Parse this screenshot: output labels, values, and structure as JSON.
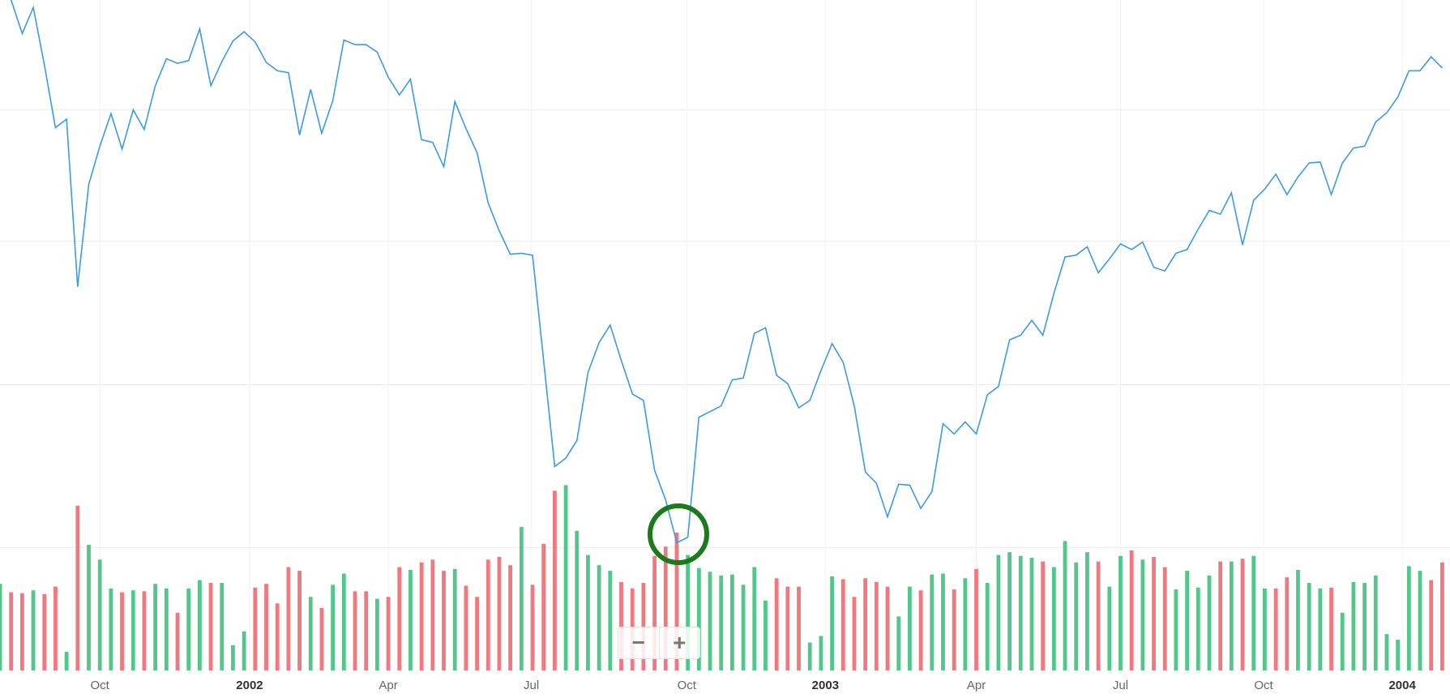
{
  "chart_data": {
    "type": "stock",
    "xlim": [
      0,
      130.7
    ],
    "ylim": [
      0,
      720
    ],
    "y2lim": [
      0,
      720
    ],
    "ygrid": [
      602,
      461,
      307,
      132
    ],
    "xticks": [
      {
        "value": 9,
        "label": "Oct"
      },
      {
        "value": 22.5,
        "label": "2002"
      },
      {
        "value": 35,
        "label": "Apr"
      },
      {
        "value": 47.9,
        "label": "Jul"
      },
      {
        "value": 61.9,
        "label": "Oct"
      },
      {
        "value": 74.4,
        "label": "2003"
      },
      {
        "value": 88,
        "label": "Apr"
      },
      {
        "value": 101,
        "label": "Jul"
      },
      {
        "value": 113.9,
        "label": "Oct"
      },
      {
        "value": 126.4,
        "label": "2004"
      }
    ],
    "series": [
      {
        "type": "line",
        "color": "#3b9be3",
        "values": [
          750,
          720,
          684,
          712,
          650,
          583,
          592,
          412,
          522,
          563,
          598,
          560,
          602,
          581,
          628,
          657,
          652,
          655,
          689,
          628,
          654,
          676,
          686,
          675,
          653,
          644,
          642,
          575,
          624,
          577,
          612,
          677,
          672,
          672,
          664,
          637,
          618,
          635,
          570,
          567,
          541,
          611,
          582,
          556,
          502,
          472,
          447,
          448,
          446,
          333,
          219,
          228,
          247,
          320,
          352,
          371,
          333,
          297,
          290,
          215,
          183,
          137,
          143,
          272,
          278,
          284,
          312,
          314,
          362,
          368,
          317,
          308,
          282,
          290,
          322,
          351,
          331,
          284,
          213,
          201,
          165,
          200,
          199,
          174,
          192,
          265,
          254,
          267,
          254,
          296,
          305,
          355,
          360,
          376,
          360,
          405,
          444,
          446,
          455,
          427,
          442,
          458,
          452,
          460,
          433,
          429,
          448,
          452,
          474,
          494,
          490,
          513,
          457,
          505,
          517,
          533,
          511,
          530,
          545,
          546,
          511,
          545,
          561,
          563,
          589,
          599,
          616,
          644,
          644,
          659,
          647
        ]
      },
      {
        "type": "bar",
        "axis": "y2",
        "values": [
          93,
          84,
          83,
          86,
          82,
          90,
          20,
          177,
          135,
          119,
          88,
          84,
          86,
          85,
          93,
          88,
          62,
          88,
          97,
          94,
          94,
          27,
          42,
          89,
          93,
          72,
          111,
          107,
          79,
          67,
          92,
          104,
          85,
          85,
          77,
          79,
          111,
          108,
          116,
          119,
          107,
          109,
          91,
          79,
          119,
          122,
          113,
          154,
          92,
          136,
          193,
          199,
          150,
          124,
          113,
          107,
          95,
          88,
          94,
          123,
          133,
          148,
          124,
          110,
          106,
          102,
          103,
          92,
          111,
          75,
          99,
          90,
          90,
          30,
          37,
          101,
          98,
          79,
          99,
          95,
          90,
          58,
          90,
          86,
          103,
          104,
          87,
          99,
          109,
          94,
          124,
          127,
          123,
          121,
          117,
          111,
          139,
          116,
          127,
          117,
          90,
          123,
          129,
          119,
          122,
          111,
          87,
          107,
          89,
          102,
          117,
          117,
          120,
          123,
          88,
          88,
          100,
          108,
          94,
          88,
          89,
          62,
          95,
          94,
          102,
          39,
          33,
          112,
          107,
          97,
          116
        ],
        "colors": [
          "#52c68b",
          "#f0787e",
          "#f0787e",
          "#52c68b",
          "#f0787e",
          "#f0787e",
          "#52c68b",
          "#f0787e",
          "#52c68b",
          "#52c68b",
          "#52c68b",
          "#f0787e",
          "#52c68b",
          "#f0787e",
          "#52c68b",
          "#52c68b",
          "#f0787e",
          "#52c68b",
          "#52c68b",
          "#f0787e",
          "#52c68b",
          "#52c68b",
          "#52c68b",
          "#f0787e",
          "#f0787e",
          "#f0787e",
          "#f0787e",
          "#f0787e",
          "#52c68b",
          "#f0787e",
          "#52c68b",
          "#52c68b",
          "#f0787e",
          "#f0787e",
          "#52c68b",
          "#f0787e",
          "#f0787e",
          "#52c68b",
          "#f0787e",
          "#f0787e",
          "#f0787e",
          "#52c68b",
          "#f0787e",
          "#f0787e",
          "#f0787e",
          "#f0787e",
          "#f0787e",
          "#52c68b",
          "#f0787e",
          "#f0787e",
          "#f0787e",
          "#52c68b",
          "#52c68b",
          "#52c68b",
          "#52c68b",
          "#52c68b",
          "#f0787e",
          "#f0787e",
          "#f0787e",
          "#f0787e",
          "#f0787e",
          "#f0787e",
          "#52c68b",
          "#52c68b",
          "#52c68b",
          "#52c68b",
          "#52c68b",
          "#52c68b",
          "#52c68b",
          "#52c68b",
          "#f0787e",
          "#f0787e",
          "#f0787e",
          "#52c68b",
          "#52c68b",
          "#52c68b",
          "#f0787e",
          "#f0787e",
          "#f0787e",
          "#f0787e",
          "#f0787e",
          "#52c68b",
          "#52c68b",
          "#f0787e",
          "#52c68b",
          "#52c68b",
          "#f0787e",
          "#52c68b",
          "#f0787e",
          "#52c68b",
          "#52c68b",
          "#52c68b",
          "#52c68b",
          "#52c68b",
          "#f0787e",
          "#52c68b",
          "#52c68b",
          "#52c68b",
          "#52c68b",
          "#f0787e",
          "#52c68b",
          "#52c68b",
          "#f0787e",
          "#52c68b",
          "#f0787e",
          "#f0787e",
          "#52c68b",
          "#52c68b",
          "#52c68b",
          "#52c68b",
          "#f0787e",
          "#52c68b",
          "#f0787e",
          "#52c68b",
          "#52c68b",
          "#f0787e",
          "#f0787e",
          "#52c68b",
          "#52c68b",
          "#52c68b",
          "#f0787e",
          "#52c68b",
          "#52c68b",
          "#52c68b",
          "#52c68b",
          "#52c68b",
          "#52c68b",
          "#52c68b",
          "#52c68b",
          "#f0787e",
          "#f0787e"
        ]
      }
    ]
  },
  "controls": {
    "zoom_out": "−",
    "zoom_in": "+"
  }
}
